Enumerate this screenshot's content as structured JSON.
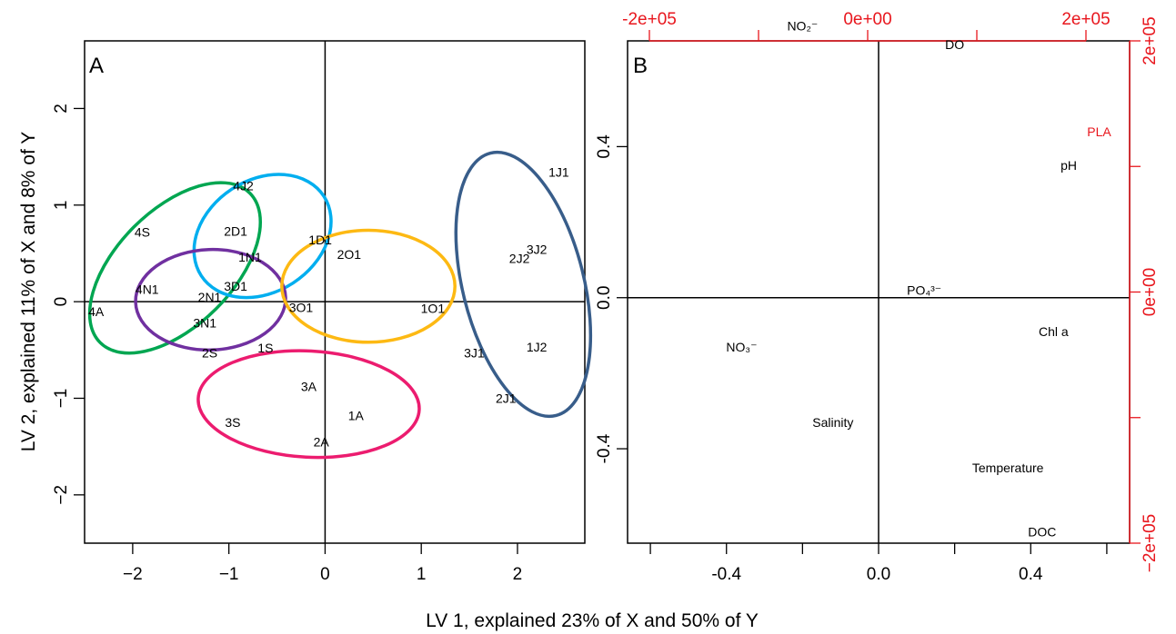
{
  "xlabel": "LV 1, explained 23% of X and 50% of Y",
  "ylabel": "LV 2, explained 11% of X and 8% of Y",
  "chart_data": [
    {
      "type": "scatter",
      "panel_label": "A",
      "xlim": [
        -2.5,
        2.7
      ],
      "ylim": [
        -2.5,
        2.7
      ],
      "xticks": [
        -2,
        -1,
        0,
        1,
        2
      ],
      "yticks": [
        -2,
        -1,
        0,
        1,
        2
      ],
      "tick_labels_x": [
        "−2",
        "−1",
        "0",
        "1",
        "2"
      ],
      "tick_labels_y": [
        "−2",
        "−1",
        "0",
        "1",
        "2"
      ],
      "reference_lines": {
        "x": 0,
        "y": 0
      },
      "points": [
        {
          "label": "4A",
          "x": -2.38,
          "y": -0.1
        },
        {
          "label": "4N1",
          "x": -1.85,
          "y": 0.13
        },
        {
          "label": "4S",
          "x": -1.9,
          "y": 0.72
        },
        {
          "label": "4J2",
          "x": -0.85,
          "y": 1.2
        },
        {
          "label": "2D1",
          "x": -0.93,
          "y": 0.73
        },
        {
          "label": "1N1",
          "x": -0.78,
          "y": 0.46
        },
        {
          "label": "3D1",
          "x": -0.93,
          "y": 0.16
        },
        {
          "label": "2N1",
          "x": -1.2,
          "y": 0.05
        },
        {
          "label": "3N1",
          "x": -1.25,
          "y": -0.22
        },
        {
          "label": "2S",
          "x": -1.2,
          "y": -0.53
        },
        {
          "label": "1S",
          "x": -0.62,
          "y": -0.48
        },
        {
          "label": "3O1",
          "x": -0.25,
          "y": -0.06
        },
        {
          "label": "1D1",
          "x": -0.05,
          "y": 0.64
        },
        {
          "label": "2O1",
          "x": 0.25,
          "y": 0.49
        },
        {
          "label": "1O1",
          "x": 1.12,
          "y": -0.07
        },
        {
          "label": "3A",
          "x": -0.17,
          "y": -0.88
        },
        {
          "label": "1A",
          "x": 0.32,
          "y": -1.18
        },
        {
          "label": "3S",
          "x": -0.96,
          "y": -1.25
        },
        {
          "label": "2A",
          "x": -0.04,
          "y": -1.45
        },
        {
          "label": "1J1",
          "x": 2.43,
          "y": 1.34
        },
        {
          "label": "3J2",
          "x": 2.2,
          "y": 0.54
        },
        {
          "label": "2J2",
          "x": 2.02,
          "y": 0.45
        },
        {
          "label": "3J1",
          "x": 1.55,
          "y": -0.53
        },
        {
          "label": "1J2",
          "x": 2.2,
          "y": -0.47
        },
        {
          "label": "2J1",
          "x": 1.88,
          "y": -1.0
        }
      ],
      "ellipses": [
        {
          "color": "#00a651",
          "cx": -1.56,
          "cy": 0.35,
          "rx": 1.1,
          "ry": 0.6,
          "angle_deg": 45
        },
        {
          "color": "#00aeef",
          "cx": -0.65,
          "cy": 0.68,
          "rx": 0.76,
          "ry": 0.58,
          "angle_deg": 33
        },
        {
          "color": "#7030a0",
          "cx": -1.19,
          "cy": 0.02,
          "rx": 0.78,
          "ry": 0.52,
          "angle_deg": 2
        },
        {
          "color": "#fdb913",
          "cx": 0.45,
          "cy": 0.16,
          "rx": 0.9,
          "ry": 0.58,
          "angle_deg": 0
        },
        {
          "color": "#ec1c6f",
          "cx": -0.17,
          "cy": -1.06,
          "rx": 1.15,
          "ry": 0.55,
          "angle_deg": -3
        },
        {
          "color": "#385d8a",
          "cx": 2.06,
          "cy": 0.18,
          "rx": 0.63,
          "ry": 1.4,
          "angle_deg": 14
        }
      ]
    },
    {
      "type": "scatter",
      "panel_label": "B",
      "xlim": [
        -0.66,
        0.66
      ],
      "ylim": [
        -0.65,
        0.68
      ],
      "xticks": [
        -0.6,
        -0.4,
        -0.2,
        0.0,
        0.2,
        0.4,
        0.6
      ],
      "xtick_labels": {
        "-0.4": "-0.4",
        "0": "0.0",
        "0.4": "0.4"
      },
      "yticks": [
        -0.4,
        0.0,
        0.4
      ],
      "ytick_labels": [
        "-0.4",
        "0.0",
        "0.4"
      ],
      "reference_lines": {
        "x": 0,
        "y": 0
      },
      "top_axis": {
        "color": "#e8161d",
        "range": [
          -220000.0,
          240000.0
        ],
        "ticks": [
          -200000.0,
          -100000.0,
          0,
          100000.0,
          200000.0
        ],
        "labels": {
          "-2e5": "-2e+05",
          "0": "0e+00",
          "2e5": "2e+05"
        }
      },
      "right_axis": {
        "color": "#e8161d",
        "range": [
          -200000.0,
          200000.0
        ],
        "ticks": [
          -200000.0,
          -100000.0,
          0,
          100000.0,
          200000.0
        ],
        "labels": {
          "-2e5": "−2e+05",
          "0": "0e+00",
          "2e5": "2e+05"
        }
      },
      "loadings": [
        {
          "label": "NO₂⁻",
          "x": -0.2,
          "y": 0.72
        },
        {
          "label": "DO",
          "x": 0.2,
          "y": 0.67
        },
        {
          "label": "PLA",
          "x": 0.58,
          "y": 0.44,
          "color": "#e8161d"
        },
        {
          "label": "pH",
          "x": 0.5,
          "y": 0.35
        },
        {
          "label": "PO₄³⁻",
          "x": 0.12,
          "y": 0.02
        },
        {
          "label": "NO₃⁻",
          "x": -0.36,
          "y": -0.13
        },
        {
          "label": "Chl a",
          "x": 0.46,
          "y": -0.09
        },
        {
          "label": "Salinity",
          "x": -0.12,
          "y": -0.33
        },
        {
          "label": "Temperature",
          "x": 0.34,
          "y": -0.45
        },
        {
          "label": "DOC",
          "x": 0.43,
          "y": -0.62
        }
      ]
    }
  ]
}
